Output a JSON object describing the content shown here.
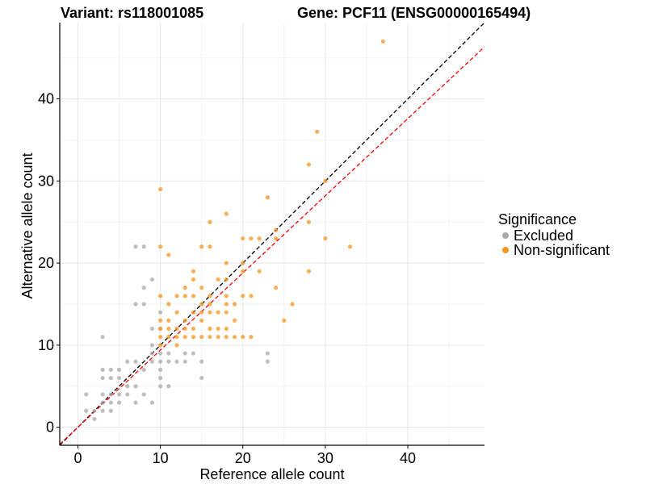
{
  "chart_data": {
    "type": "scatter",
    "title_left": "Variant: rs118001085",
    "title_right": "Gene: PCF11 (ENSG00000165494)",
    "xlabel": "Reference allele count",
    "ylabel": "Alternative allele count",
    "xlim": [
      -2.2,
      49.3
    ],
    "ylim": [
      -2.2,
      49.3
    ],
    "x_ticks": [
      0,
      10,
      20,
      30,
      40
    ],
    "y_ticks": [
      0,
      10,
      20,
      30,
      40
    ],
    "grid": true,
    "legend": {
      "title": "Significance",
      "position": "right",
      "entries": [
        {
          "label": "Excluded",
          "color": "#aaaaaa"
        },
        {
          "label": "Non-significant",
          "color": "#f7941d"
        }
      ]
    },
    "reference_lines": [
      {
        "slope": 1.0,
        "intercept": 0,
        "color": "#000000",
        "style": "dashed"
      },
      {
        "slope": 0.94,
        "intercept": 0,
        "color": "#ff0000",
        "style": "dashed"
      }
    ],
    "series": [
      {
        "name": "Excluded",
        "color": "#aaaaaa",
        "points": [
          [
            1,
            4
          ],
          [
            1,
            2
          ],
          [
            2,
            2
          ],
          [
            2,
            1
          ],
          [
            3,
            11
          ],
          [
            3,
            7
          ],
          [
            3,
            6
          ],
          [
            3,
            4
          ],
          [
            3,
            3
          ],
          [
            3,
            2
          ],
          [
            4,
            7
          ],
          [
            4,
            6
          ],
          [
            4,
            4
          ],
          [
            4,
            3
          ],
          [
            4,
            2
          ],
          [
            5,
            7
          ],
          [
            5,
            6
          ],
          [
            5,
            4
          ],
          [
            6,
            8
          ],
          [
            6,
            5
          ],
          [
            6,
            4
          ],
          [
            7,
            22
          ],
          [
            7,
            15
          ],
          [
            7,
            8
          ],
          [
            7,
            5
          ],
          [
            7,
            3
          ],
          [
            8,
            22
          ],
          [
            8,
            15
          ],
          [
            8,
            7
          ],
          [
            8,
            4
          ],
          [
            9,
            18
          ],
          [
            9,
            12
          ],
          [
            9,
            10
          ],
          [
            9,
            9
          ],
          [
            9,
            8
          ],
          [
            9,
            3
          ],
          [
            10,
            14
          ],
          [
            10,
            12
          ],
          [
            10,
            9
          ],
          [
            10,
            8
          ],
          [
            10,
            7
          ],
          [
            10,
            6
          ],
          [
            10,
            5
          ],
          [
            11,
            9
          ],
          [
            11,
            8
          ],
          [
            11,
            5
          ],
          [
            12,
            8
          ],
          [
            13,
            9
          ],
          [
            13,
            8
          ],
          [
            14,
            9
          ],
          [
            15,
            8
          ],
          [
            15,
            6
          ],
          [
            23,
            9
          ],
          [
            23,
            8
          ],
          [
            8,
            17
          ],
          [
            5,
            3
          ]
        ]
      },
      {
        "name": "Non-significant",
        "color": "#f7941d",
        "points": [
          [
            10,
            29
          ],
          [
            10,
            22
          ],
          [
            10,
            16
          ],
          [
            10,
            13
          ],
          [
            10,
            12
          ],
          [
            10,
            11
          ],
          [
            10,
            10
          ],
          [
            11,
            21
          ],
          [
            11,
            15
          ],
          [
            11,
            13
          ],
          [
            11,
            12
          ],
          [
            11,
            11
          ],
          [
            12,
            16
          ],
          [
            12,
            14
          ],
          [
            12,
            12
          ],
          [
            12,
            11
          ],
          [
            12,
            10
          ],
          [
            13,
            17
          ],
          [
            13,
            16
          ],
          [
            13,
            13
          ],
          [
            13,
            12
          ],
          [
            13,
            11
          ],
          [
            14,
            19
          ],
          [
            14,
            18
          ],
          [
            14,
            16
          ],
          [
            14,
            14
          ],
          [
            14,
            12
          ],
          [
            14,
            11
          ],
          [
            15,
            22
          ],
          [
            15,
            17
          ],
          [
            15,
            15
          ],
          [
            15,
            14
          ],
          [
            15,
            13
          ],
          [
            15,
            11
          ],
          [
            16,
            25
          ],
          [
            16,
            22
          ],
          [
            16,
            16
          ],
          [
            16,
            15
          ],
          [
            16,
            14
          ],
          [
            16,
            12
          ],
          [
            16,
            11
          ],
          [
            17,
            18
          ],
          [
            17,
            14
          ],
          [
            17,
            12
          ],
          [
            17,
            11
          ],
          [
            18,
            26
          ],
          [
            18,
            20
          ],
          [
            18,
            18
          ],
          [
            18,
            16
          ],
          [
            18,
            15
          ],
          [
            18,
            14
          ],
          [
            18,
            12
          ],
          [
            18,
            11
          ],
          [
            19,
            15
          ],
          [
            19,
            13
          ],
          [
            19,
            11
          ],
          [
            20,
            23
          ],
          [
            20,
            20
          ],
          [
            20,
            19
          ],
          [
            20,
            16
          ],
          [
            20,
            11
          ],
          [
            21,
            23
          ],
          [
            21,
            16
          ],
          [
            21,
            11
          ],
          [
            22,
            23
          ],
          [
            22,
            19
          ],
          [
            23,
            28
          ],
          [
            24,
            24
          ],
          [
            24,
            23
          ],
          [
            24,
            17
          ],
          [
            25,
            13
          ],
          [
            26,
            15
          ],
          [
            28,
            32
          ],
          [
            28,
            25
          ],
          [
            28,
            19
          ],
          [
            29,
            36
          ],
          [
            30,
            30
          ],
          [
            30,
            23
          ],
          [
            33,
            22
          ],
          [
            37,
            47
          ]
        ]
      }
    ]
  }
}
